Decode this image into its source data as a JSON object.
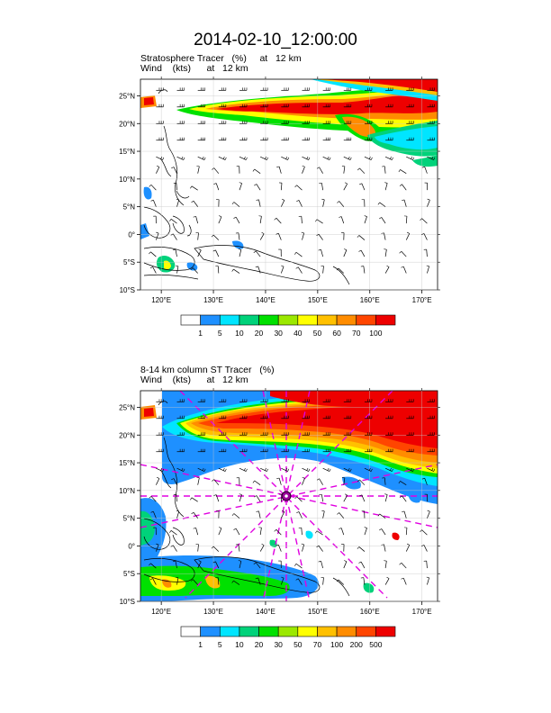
{
  "figure": {
    "title": "2014-02-10_12:00:00"
  },
  "panels": [
    {
      "title_line1": "Stratosphere Tracer   (%)     at   12 km",
      "title_line2": "Wind    (kts)      at   12 km",
      "lat_labels": [
        "25°N",
        "20°N",
        "15°N",
        "10°N",
        "5°N",
        "0°",
        "5°S",
        "10°S"
      ],
      "lon_labels": [
        "120°E",
        "130°E",
        "140°E",
        "150°E",
        "160°E",
        "170°E"
      ],
      "colorbar": {
        "labels": [
          "1",
          "5",
          "10",
          "20",
          "30",
          "40",
          "50",
          "60",
          "70",
          "100"
        ],
        "colors": [
          "#ffffff",
          "#1e90ff",
          "#00e5ff",
          "#00d27a",
          "#00e000",
          "#9be800",
          "#ffff00",
          "#ffc000",
          "#ff8c00",
          "#ff4500",
          "#ee0000"
        ]
      }
    },
    {
      "title_line1": "8-14 km column ST Tracer   (%)",
      "title_line2": "Wind    (kts)      at   12 km",
      "lat_labels": [
        "25°N",
        "20°N",
        "15°N",
        "10°N",
        "5°N",
        "0°",
        "5°S",
        "10°S"
      ],
      "lon_labels": [
        "120°E",
        "130°E",
        "140°E",
        "150°E",
        "160°E",
        "170°E"
      ],
      "colorbar": {
        "labels": [
          "1",
          "5",
          "10",
          "20",
          "30",
          "50",
          "70",
          "100",
          "200",
          "500"
        ],
        "colors": [
          "#ffffff",
          "#1e90ff",
          "#00e5ff",
          "#00d27a",
          "#00e000",
          "#9be800",
          "#ffff00",
          "#ffc000",
          "#ff8c00",
          "#ff4500",
          "#ee0000"
        ]
      },
      "storm_center": {
        "lat": 10,
        "lon": 145
      }
    }
  ],
  "map_extent": {
    "lon_min": 116,
    "lon_max": 173,
    "lat_min": -10,
    "lat_max": 28
  },
  "colors": {
    "storm_overlay": "#e000e0",
    "land_outline": "#000000",
    "grid": "#c8c8c8"
  }
}
